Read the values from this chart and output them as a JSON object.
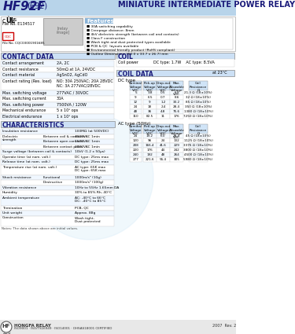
{
  "title": "HF92F",
  "title_sub": "(692)",
  "title_right": "MINIATURE INTERMEDIATE POWER RELAY",
  "bg_color": "#ffffff",
  "header_blue": "#4a7ab5",
  "header_light_blue": "#d0e4f7",
  "section_bg": "#cce0f5",
  "feature_bg": "#8ab4d8",
  "features_title": "Features",
  "features": [
    "30A switching capability",
    "Creepage distance: 8mm",
    "4kV dielectric strength (between coil and contacts)",
    "Class F construction",
    "Wash tight and dust protected types available",
    "PCB & QC  layouts available",
    "Environmental friendly product (RoHS compliant)",
    "Outline Dimensions: (52.0 x 33.7 x 26.7) mm"
  ],
  "contact_data_title": "CONTACT DATA",
  "contact_data": [
    [
      "Contact arrangement",
      "2A, 2C"
    ],
    [
      "Contact resistance",
      "50mΩ at 1A, 24VDC"
    ],
    [
      "Contact material",
      "AgSnO2, AgCdO"
    ],
    [
      "Contact rating (Res. load)",
      "NO: 30A 250VAC; 20A 28VDC\nNC: 3A 277VAC/28VDC"
    ],
    [
      "Max. switching voltage",
      "277VAC / 30VDC"
    ],
    [
      "Max. switching current",
      "30A"
    ],
    [
      "Max. switching power",
      "7500VA / 120W"
    ],
    [
      "Mechanical endurance",
      "5 x 10⁶ ops"
    ],
    [
      "Electrical endurance",
      "1 x 10⁵ ops"
    ]
  ],
  "coil_title": "COIL",
  "coil_data": [
    [
      "Coil power",
      "DC type: 1.7W    AC type: 8.5VA"
    ]
  ],
  "coil_data_title": "COIL DATA",
  "coil_data_at": "at 23°C",
  "dc_type_label": "DC type",
  "dc_headers": [
    "Nominal\nVoltage\nVDC",
    "Pick-up\nVoltage\nVDC",
    "Drop-out\nVoltage\nVDC",
    "Max.\nAllowable\nVoltage\nVDC",
    "Coil\nResistance\nΩ"
  ],
  "dc_rows": [
    [
      "5",
      "3.8",
      "0.5",
      "6.5",
      "21.3 Ω (18±10%)"
    ],
    [
      "9",
      "6.5",
      "0.7",
      "8.6",
      "32 Ω (18±10%)"
    ],
    [
      "12",
      "9",
      "1.2",
      "33.2",
      "85 Ω (18±10%)"
    ],
    [
      "24",
      "18",
      "2.4",
      "28.4",
      "350 Ω (18±10%)"
    ],
    [
      "48",
      "36",
      "4.8",
      "75.6",
      "1380 Ω (18±10%)"
    ],
    [
      "110",
      "82.5",
      "11",
      "176",
      "7250 Ω (18±10%)"
    ]
  ],
  "ac_type_label": "AC type (50Hz)",
  "ac_headers": [
    "Nominal\nVoltage\nVAC",
    "Pick-up\nVoltage\nVAC",
    "Drop-out\nVoltage\nVAC",
    "Max.\nAllowable\nVoltage\nVAC",
    "Coil\nResistance\nΩ"
  ],
  "ac_rows": [
    [
      "24",
      "19.2",
      "6.0",
      "28.4",
      "45 Ω (18±10%)"
    ],
    [
      "120",
      "96",
      "24",
      "132",
      "1125 Ω (18±10%)"
    ],
    [
      "208",
      "166.4",
      "41.6",
      "229",
      "3376 Ω (18±10%)"
    ],
    [
      "220",
      "176",
      "44",
      "242",
      "3800 Ω (18±10%)"
    ],
    [
      "240",
      "192",
      "48",
      "264",
      "4500 Ω (18±10%)"
    ],
    [
      "277",
      "221.6",
      "55.4",
      "305",
      "5980 Ω (18±10%)"
    ]
  ],
  "char_title": "CHARACTERISTICS",
  "char_data": [
    [
      "Insulation resistance",
      "",
      "100MΩ (at 500VDC)"
    ],
    [
      "Dielectric\nstrength",
      "Between coil & contacts",
      "4000VAC 1min"
    ],
    [
      "",
      "Between open contacts",
      "1500VAC 1min"
    ],
    [
      "",
      "Between contact poles",
      "2000VAC 1min"
    ],
    [
      "Surge voltage (between coil & contacts)",
      "",
      "10kV (1.2 x 50μs)"
    ],
    [
      "Operate time (at nom. volt.)",
      "",
      "DC type: 25ms max"
    ],
    [
      "Release time (at nom. volt.)",
      "",
      "DC type: 25ms max"
    ],
    [
      "Temperature rise (at nom. volt.)",
      "",
      "AC type: 65K max\nDC type: 65K max"
    ],
    [
      "Shock resistance",
      "Functional",
      "1000m/s² (10g)"
    ],
    [
      "",
      "Destructive",
      "1000m/s² (100g)"
    ],
    [
      "Vibration resistance",
      "",
      "10Hz to 55Hz 1.65mm DA"
    ],
    [
      "Humidity",
      "",
      "30% to 85% Rh, 40°C"
    ],
    [
      "Ambient temperature",
      "",
      "AC: -40°C to 66°C\nDC: -40°C to 85°C"
    ],
    [
      "Termination",
      "",
      "PCB, QC"
    ],
    [
      "Unit weight",
      "",
      "Approx. 88g"
    ],
    [
      "Construction",
      "",
      "Wash tight,\nDust protected"
    ]
  ],
  "footer_logo": "HONGFA RELAY",
  "footer_cert": "ISO9001 · ISO/TS16949 · ISO14001 · OHSAS18001 CERTIFIED",
  "footer_year": "2007  Rev. 2.00",
  "footer_page": "226"
}
